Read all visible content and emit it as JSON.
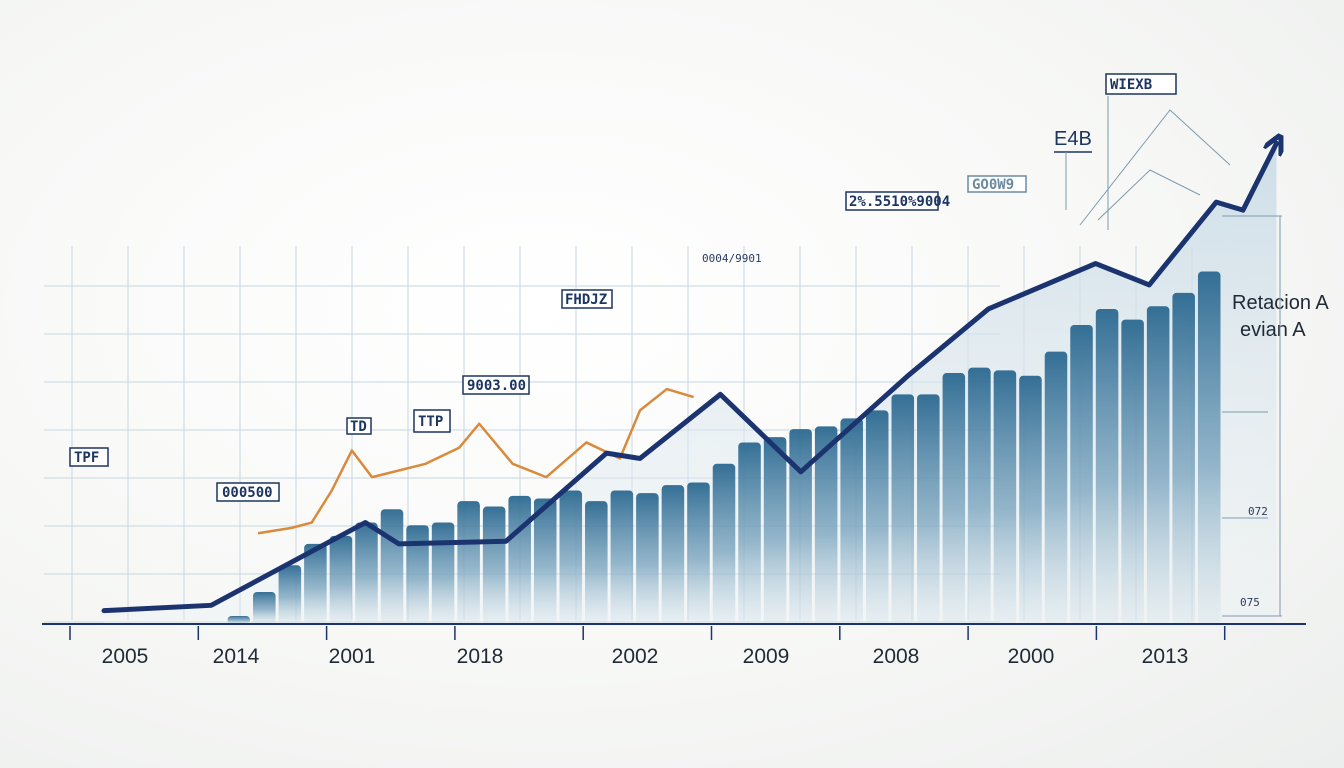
{
  "chart_data": {
    "type": "bar",
    "categories": [
      "2005",
      "2014",
      "2001",
      "2018",
      "2002",
      "2009",
      "2008",
      "2000",
      "2013"
    ],
    "bar_values": [
      3,
      12,
      22,
      30,
      33,
      38,
      43,
      37,
      38,
      46,
      44,
      48,
      47,
      50,
      46,
      50,
      49,
      52,
      53,
      60,
      68,
      70,
      73,
      74,
      77,
      80,
      86,
      86,
      94,
      96,
      95,
      93,
      102,
      112,
      118,
      114,
      119,
      124,
      132
    ],
    "line": {
      "x": [
        0,
        0.8,
        1.95,
        2.2,
        3.0,
        3.75,
        4.0,
        4.6,
        5.2,
        6.0,
        6.6,
        7.4,
        7.8,
        8.3,
        8.5,
        8.75
      ],
      "y": [
        5,
        7,
        38,
        30,
        31,
        64,
        62,
        86,
        57,
        93,
        118,
        135,
        127,
        158,
        155,
        180
      ]
    },
    "orange_line": {
      "x": [
        1.15,
        1.4,
        1.55,
        1.7,
        1.85,
        2.0,
        2.4,
        2.65,
        2.8,
        3.05,
        3.3,
        3.6,
        3.85,
        4.0,
        4.2,
        4.4
      ],
      "y": [
        34,
        36,
        38,
        50,
        65,
        55,
        60,
        66,
        75,
        60,
        55,
        68,
        62,
        80,
        88,
        85
      ]
    },
    "ylim": [
      0,
      200
    ],
    "grid": true,
    "legend": "none",
    "annotations": [
      "TPF",
      "000500",
      "TD",
      "TTP",
      "9003.00",
      "FHDJZ",
      "0004/9901",
      "2%.5510%9004",
      "GO0W9",
      "E4B",
      "WIEXB",
      "072",
      "075"
    ],
    "side_labels": [
      "Retacion A",
      "evian A"
    ],
    "colors": {
      "line": "#1b3470",
      "bars": "#2c6b93",
      "orange": "#d98a3d",
      "grid": "#c7d6e2"
    }
  }
}
